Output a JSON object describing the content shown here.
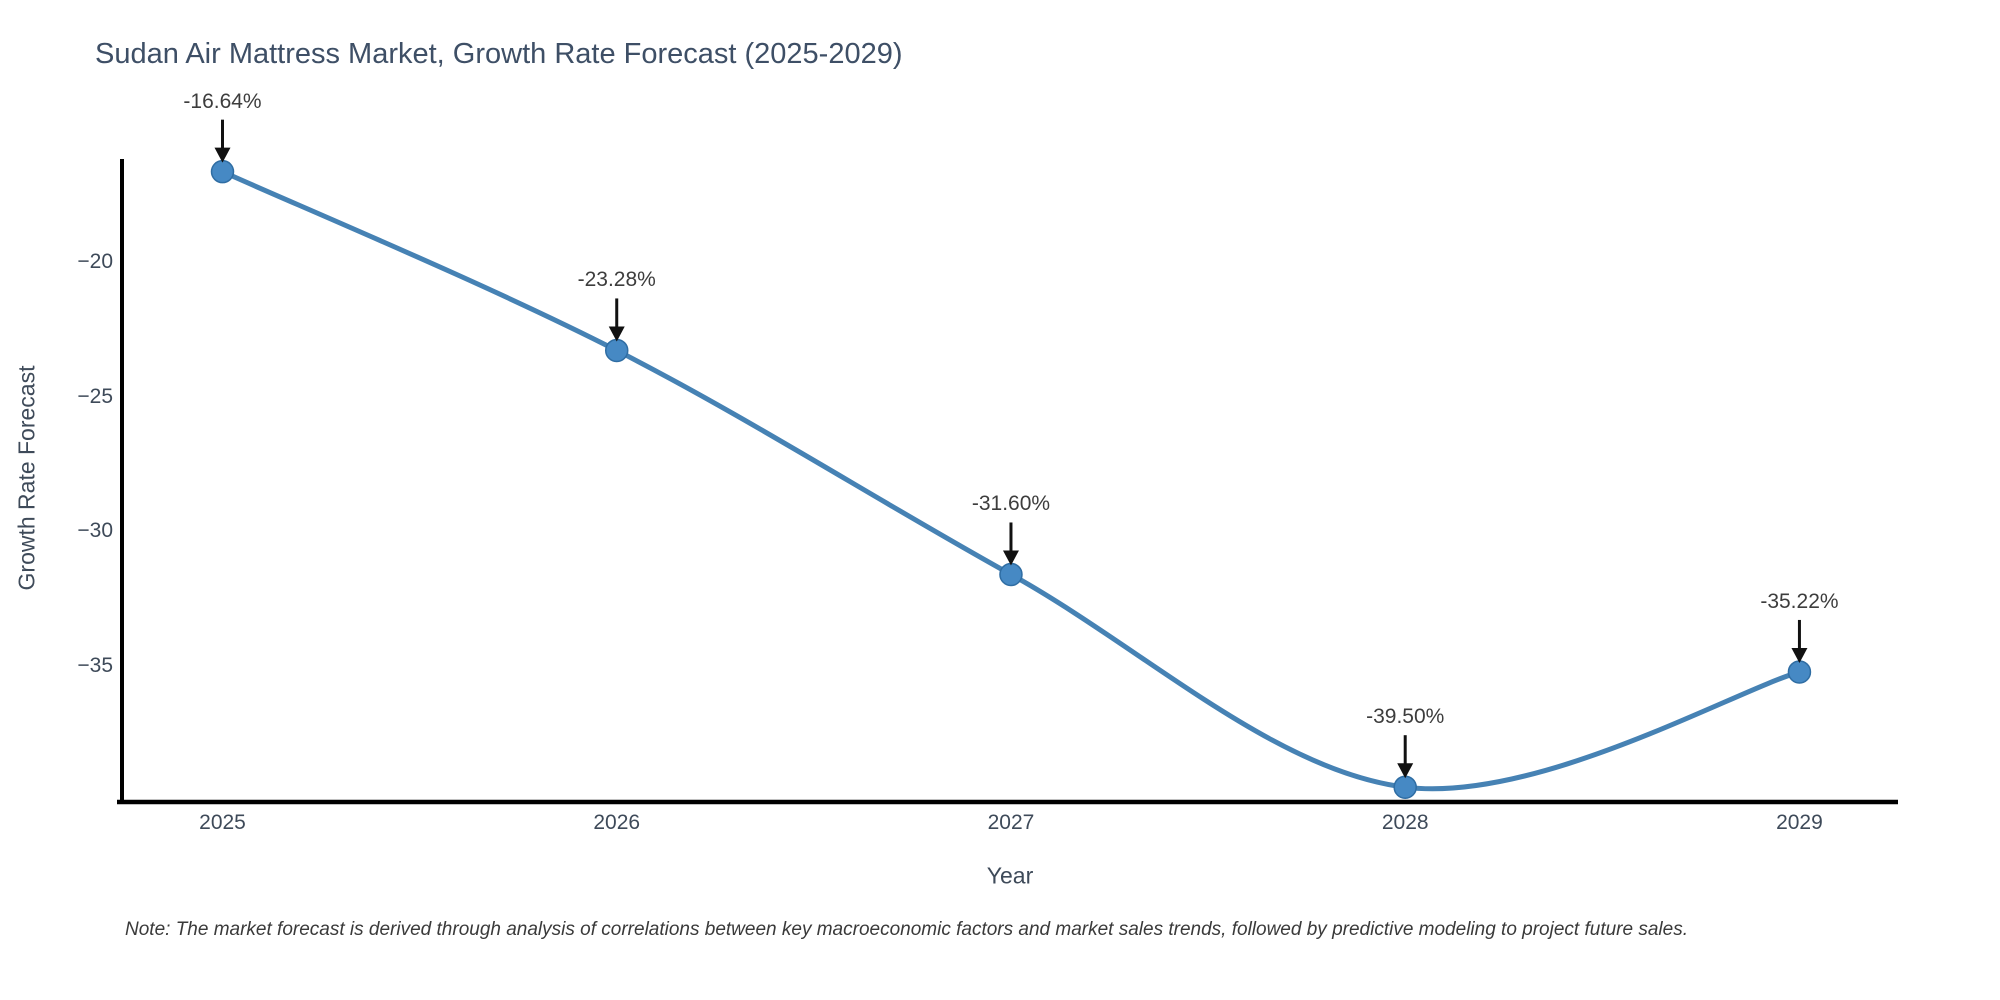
{
  "chart_data": {
    "type": "line",
    "line_shape": "spline",
    "title": "Sudan Air Mattress Market, Growth Rate Forecast (2025-2029)",
    "xlabel": "Year",
    "ylabel": "Growth Rate Forecast",
    "categories": [
      2025,
      2026,
      2027,
      2028,
      2029
    ],
    "series": [
      {
        "name": "Growth Rate Forecast",
        "values": [
          -16.64,
          -23.28,
          -31.6,
          -39.5,
          -35.22
        ]
      }
    ],
    "point_labels": [
      "-16.64%",
      "-23.28%",
      "-31.60%",
      "-39.50%",
      "-35.22%"
    ],
    "x_tick_labels": [
      "2025",
      "2026",
      "2027",
      "2028",
      "2029"
    ],
    "y_tick_values": [
      -20,
      -25,
      -30,
      -35
    ],
    "y_tick_labels": [
      "−20",
      "−25",
      "−30",
      "−35"
    ],
    "xlim": [
      2024.74,
      2029.25
    ],
    "ylim": [
      -40.05,
      -16.17
    ],
    "grid": false,
    "legend": "none",
    "line_color": "#4682b4",
    "marker_color": "#4689c4",
    "marker_edge_color": "#2f6da3",
    "axis_color": "#000000",
    "annotation_arrow_color": "#111111",
    "note": "Note: The market forecast is derived through analysis of correlations between key macroeconomic factors and market sales trends, followed by predictive modeling to project future sales."
  }
}
